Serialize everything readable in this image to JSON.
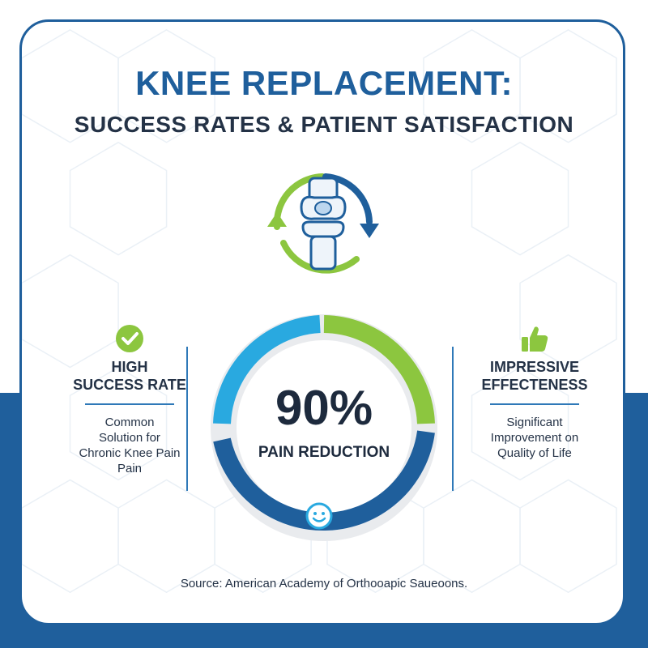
{
  "header": {
    "title": "KNEE REPLACEMENT:",
    "subtitle": "SUCCESS RATES & PATIENT SATISFACTION"
  },
  "hero_icon": "knee-joint-cycle-icon",
  "left_panel": {
    "icon": "check-circle-icon",
    "title_line1": "HIGH",
    "title_line2": "SUCCESS RATE",
    "desc_lines": [
      "Common",
      "Solution for",
      "Chronic Knee Pain",
      "Pain"
    ]
  },
  "right_panel": {
    "icon": "thumbs-up-icon",
    "title_line1": "IMPRESSIVE",
    "title_line2": "EFFECTENESS",
    "desc_lines": [
      "Significant",
      "Improvement on",
      "Quality of Life"
    ]
  },
  "gauge": {
    "value": "90%",
    "label": "PAIN REDUCTION",
    "icon": "smiley-icon",
    "colors": {
      "green": "#8cc63f",
      "light_blue": "#29a9e0",
      "dark_blue": "#1f5f9c",
      "track": "#e6e8eb"
    }
  },
  "footer": {
    "source": "Source: American Academy of Orthooapic Saueoons."
  },
  "colors": {
    "primary": "#1f5f9c",
    "text_dark": "#243246",
    "accent_green": "#8cc63f"
  }
}
